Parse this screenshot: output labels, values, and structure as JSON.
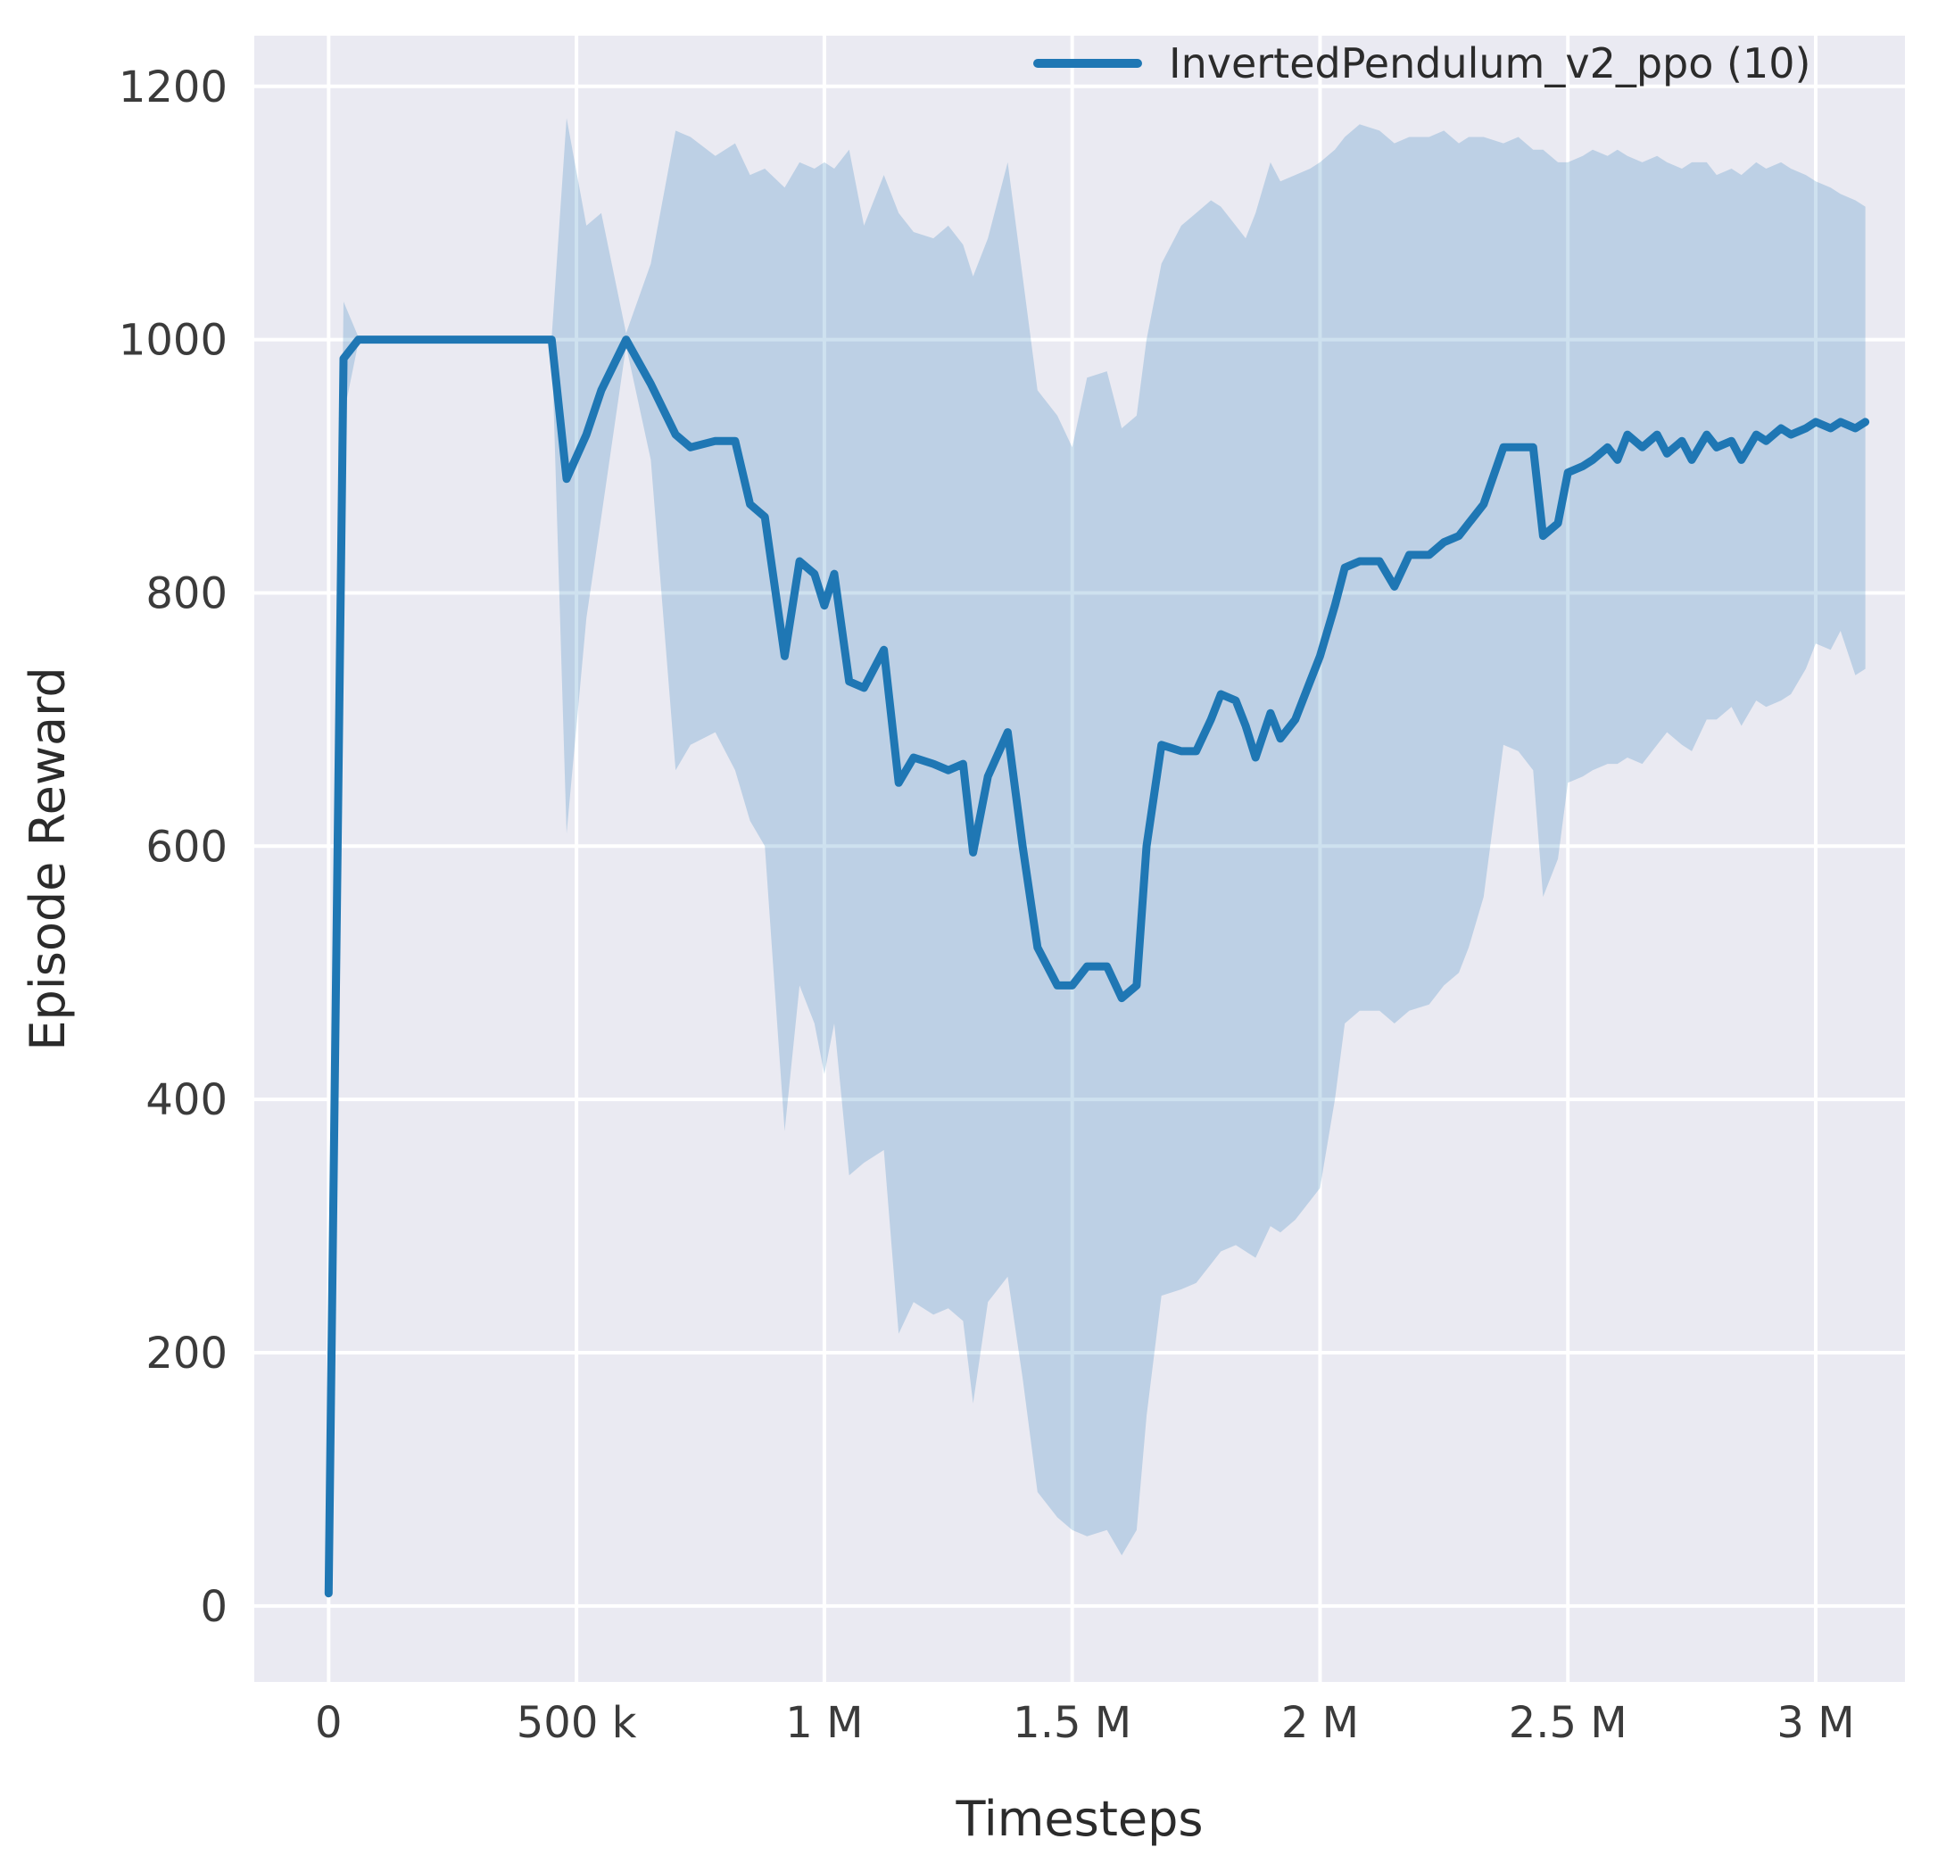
{
  "chart_data": {
    "type": "line",
    "title": "",
    "xlabel": "Timesteps",
    "ylabel": "Episode Reward",
    "legend_position": "upper right",
    "grid": true,
    "xlim": [
      -0.15,
      3.18
    ],
    "ylim": [
      -60,
      1240
    ],
    "x_unit": "millions of timesteps",
    "xticks": {
      "values": [
        0,
        0.5,
        1,
        1.5,
        2,
        2.5,
        3
      ],
      "labels": [
        "0",
        "500 k",
        "1 M",
        "1.5 M",
        "2 M",
        "2.5 M",
        "3 M"
      ]
    },
    "yticks": {
      "values": [
        0,
        200,
        400,
        600,
        800,
        1000,
        1200
      ],
      "labels": [
        "0",
        "200",
        "400",
        "600",
        "800",
        "1000",
        "1200"
      ]
    },
    "colors": {
      "line": "#1f77b4",
      "band": "#1f77b4",
      "band_opacity": 0.22,
      "plot_bg": "#eaeaf2",
      "grid": "#ffffff",
      "text": "#2b2b2b"
    },
    "series": [
      {
        "name": "InvertedPendulum_v2_ppo (10)",
        "x": [
          0,
          0.03,
          0.06,
          0.45,
          0.48,
          0.52,
          0.55,
          0.6,
          0.65,
          0.7,
          0.73,
          0.78,
          0.82,
          0.85,
          0.88,
          0.92,
          0.95,
          0.98,
          1.0,
          1.02,
          1.05,
          1.08,
          1.12,
          1.15,
          1.18,
          1.22,
          1.25,
          1.28,
          1.3,
          1.33,
          1.37,
          1.4,
          1.43,
          1.47,
          1.5,
          1.53,
          1.57,
          1.6,
          1.63,
          1.65,
          1.68,
          1.72,
          1.75,
          1.78,
          1.8,
          1.83,
          1.85,
          1.87,
          1.9,
          1.92,
          1.95,
          1.98,
          2.0,
          2.03,
          2.05,
          2.08,
          2.12,
          2.15,
          2.18,
          2.22,
          2.25,
          2.28,
          2.3,
          2.33,
          2.37,
          2.4,
          2.43,
          2.45,
          2.48,
          2.5,
          2.53,
          2.55,
          2.58,
          2.6,
          2.62,
          2.65,
          2.68,
          2.7,
          2.73,
          2.75,
          2.78,
          2.8,
          2.83,
          2.85,
          2.88,
          2.9,
          2.93,
          2.95,
          2.98,
          3.0,
          3.03,
          3.05,
          3.08,
          3.1
        ],
        "mean": [
          10,
          985,
          1000,
          1000,
          890,
          925,
          960,
          1000,
          965,
          925,
          915,
          920,
          920,
          870,
          860,
          750,
          825,
          815,
          790,
          815,
          730,
          725,
          755,
          650,
          670,
          665,
          660,
          665,
          595,
          655,
          690,
          600,
          520,
          490,
          490,
          505,
          505,
          480,
          490,
          600,
          680,
          675,
          675,
          700,
          720,
          715,
          695,
          670,
          705,
          685,
          700,
          730,
          750,
          790,
          820,
          825,
          825,
          805,
          830,
          830,
          840,
          845,
          855,
          870,
          915,
          915,
          915,
          845,
          855,
          895,
          900,
          905,
          915,
          905,
          925,
          915,
          925,
          910,
          920,
          905,
          925,
          915,
          920,
          905,
          925,
          920,
          930,
          925,
          930,
          935,
          930,
          935,
          930,
          935
        ],
        "lower": [
          5,
          940,
          998,
          998,
          610,
          780,
          860,
          995,
          905,
          660,
          680,
          690,
          660,
          620,
          600,
          375,
          490,
          460,
          420,
          460,
          340,
          350,
          360,
          215,
          240,
          230,
          235,
          225,
          160,
          240,
          260,
          180,
          90,
          70,
          60,
          55,
          60,
          40,
          60,
          150,
          245,
          250,
          255,
          270,
          280,
          285,
          280,
          275,
          300,
          295,
          305,
          320,
          330,
          400,
          460,
          470,
          470,
          460,
          470,
          475,
          490,
          500,
          520,
          560,
          680,
          675,
          660,
          560,
          590,
          650,
          655,
          660,
          665,
          665,
          670,
          665,
          680,
          690,
          680,
          675,
          700,
          700,
          710,
          695,
          715,
          710,
          715,
          720,
          740,
          760,
          755,
          770,
          735,
          740
        ],
        "upper": [
          15,
          1030,
          1002,
          1002,
          1175,
          1090,
          1100,
          1005,
          1060,
          1165,
          1160,
          1145,
          1155,
          1130,
          1135,
          1120,
          1140,
          1135,
          1140,
          1135,
          1150,
          1090,
          1130,
          1100,
          1085,
          1080,
          1090,
          1075,
          1050,
          1080,
          1140,
          1050,
          960,
          940,
          915,
          970,
          975,
          930,
          940,
          1000,
          1060,
          1090,
          1100,
          1110,
          1105,
          1090,
          1080,
          1100,
          1140,
          1125,
          1130,
          1135,
          1140,
          1150,
          1160,
          1170,
          1165,
          1155,
          1160,
          1160,
          1165,
          1155,
          1160,
          1160,
          1155,
          1160,
          1150,
          1150,
          1140,
          1140,
          1145,
          1150,
          1145,
          1150,
          1145,
          1140,
          1145,
          1140,
          1135,
          1140,
          1140,
          1130,
          1135,
          1130,
          1140,
          1135,
          1140,
          1135,
          1130,
          1125,
          1120,
          1115,
          1110,
          1105
        ]
      }
    ]
  },
  "legend": {
    "entries": [
      {
        "label": "InvertedPendulum_v2_ppo (10)",
        "color": "#1f77b4"
      }
    ]
  }
}
